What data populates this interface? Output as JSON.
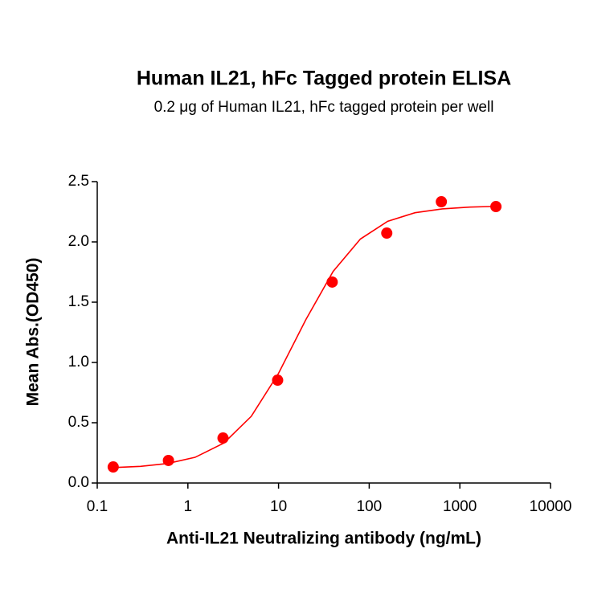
{
  "chart_data": {
    "type": "scatter-fit",
    "title": "Human IL21, hFc Tagged protein ELISA",
    "subtitle": "0.2 μg of Human IL21, hFc tagged protein per well",
    "x_label": "Anti-IL21 Neutralizing antibody (ng/mL)",
    "y_label": "Mean Abs.(OD450)",
    "x_scale": "log",
    "color": "#ff0000",
    "xlim": [
      0.1,
      10000
    ],
    "xticks": [
      0.1,
      1,
      10,
      100,
      1000,
      10000
    ],
    "ylim": [
      0,
      2.5
    ],
    "yticks": [
      {
        "value": 0,
        "label": "0.0"
      },
      0.5,
      {
        "value": 1,
        "label": "1.0"
      },
      1.5,
      {
        "value": 2,
        "label": "2.0"
      },
      2.5
    ],
    "points": {
      "x": [
        0.15,
        0.61,
        2.44,
        9.77,
        39.06,
        156.25,
        625,
        2500
      ],
      "values": [
        0.133,
        0.187,
        0.373,
        0.853,
        1.667,
        2.073,
        2.333,
        2.293
      ]
    },
    "fit": {
      "x": [
        0.15,
        0.3,
        0.6,
        1.2,
        2.5,
        5,
        10,
        20,
        40,
        80,
        160,
        320,
        640,
        1280,
        2500
      ],
      "values": [
        0.128,
        0.138,
        0.162,
        0.213,
        0.332,
        0.553,
        0.91,
        1.355,
        1.755,
        2.024,
        2.171,
        2.242,
        2.274,
        2.289,
        2.295
      ]
    }
  }
}
